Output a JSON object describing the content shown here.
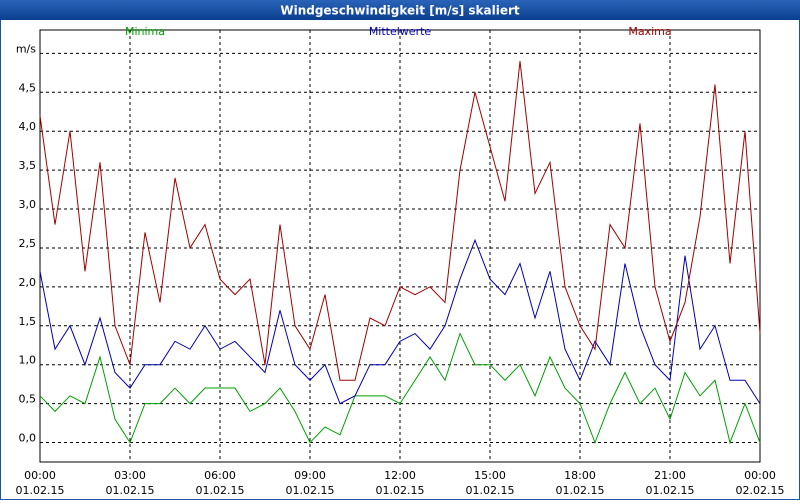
{
  "chart_data": {
    "type": "line",
    "title": "Windgeschwindigkeit [m/s] skaliert",
    "x": [
      0,
      0.5,
      1,
      1.5,
      2,
      2.5,
      3,
      3.5,
      4,
      4.5,
      5,
      5.5,
      6,
      6.5,
      7,
      7.5,
      8,
      8.5,
      9,
      9.5,
      10,
      10.5,
      11,
      11.5,
      12,
      12.5,
      13,
      13.5,
      14,
      14.5,
      15,
      15.5,
      16,
      16.5,
      17,
      17.5,
      18,
      18.5,
      19,
      19.5,
      20,
      20.5,
      21,
      21.5,
      22,
      22.5,
      23,
      23.5,
      24
    ],
    "series": [
      {
        "name": "Minima",
        "color": "#00a000",
        "values": [
          0.6,
          0.4,
          0.6,
          0.5,
          1.1,
          0.3,
          0.0,
          0.5,
          0.5,
          0.7,
          0.5,
          0.7,
          0.7,
          0.7,
          0.4,
          0.5,
          0.7,
          0.4,
          0.0,
          0.2,
          0.1,
          0.6,
          0.6,
          0.6,
          0.5,
          0.8,
          1.1,
          0.8,
          1.4,
          1.0,
          1.0,
          0.8,
          1.0,
          0.6,
          1.1,
          0.7,
          0.5,
          0.0,
          0.5,
          0.9,
          0.5,
          0.7,
          0.3,
          0.9,
          0.6,
          0.8,
          0.0,
          0.5,
          0.0
        ]
      },
      {
        "name": "Mittelwerte",
        "color": "#0000b0",
        "values": [
          2.2,
          1.2,
          1.5,
          1.0,
          1.6,
          0.9,
          0.7,
          1.0,
          1.0,
          1.3,
          1.2,
          1.5,
          1.2,
          1.3,
          1.1,
          0.9,
          1.7,
          1.0,
          0.8,
          1.0,
          0.5,
          0.6,
          1.0,
          1.0,
          1.3,
          1.4,
          1.2,
          1.5,
          2.1,
          2.6,
          2.1,
          1.9,
          2.3,
          1.6,
          2.2,
          1.2,
          0.8,
          1.3,
          1.0,
          2.3,
          1.5,
          1.0,
          0.8,
          2.4,
          1.2,
          1.5,
          0.8,
          0.8,
          0.5
        ]
      },
      {
        "name": "Maxima",
        "color": "#a00000",
        "values": [
          4.2,
          2.8,
          4.0,
          2.2,
          3.6,
          1.5,
          1.0,
          2.7,
          1.8,
          3.4,
          2.5,
          2.8,
          2.1,
          1.9,
          2.1,
          1.0,
          2.8,
          1.5,
          1.2,
          1.9,
          0.8,
          0.8,
          1.6,
          1.5,
          2.0,
          1.9,
          2.0,
          1.8,
          3.5,
          4.5,
          3.8,
          3.1,
          4.9,
          3.2,
          3.6,
          2.0,
          1.5,
          1.2,
          2.8,
          2.5,
          4.1,
          2.0,
          1.3,
          1.8,
          2.9,
          4.6,
          2.3,
          4.0,
          1.4
        ]
      }
    ],
    "xlim": [
      0,
      24
    ],
    "xticks": [
      {
        "value": 0,
        "label": "00:00"
      },
      {
        "value": 3,
        "label": "03:00"
      },
      {
        "value": 6,
        "label": "06:00"
      },
      {
        "value": 9,
        "label": "09:00"
      },
      {
        "value": 12,
        "label": "12:00"
      },
      {
        "value": 15,
        "label": "15:00"
      },
      {
        "value": 18,
        "label": "18:00"
      },
      {
        "value": 21,
        "label": "21:00"
      },
      {
        "value": 24,
        "label": "00:00"
      }
    ],
    "xtick_dates": [
      "01.02.15",
      "01.02.15",
      "01.02.15",
      "01.02.15",
      "01.02.15",
      "01.02.15",
      "01.02.15",
      "01.02.15",
      "02.02.15"
    ],
    "ylim": [
      -0.25,
      5.3
    ],
    "yticks": [
      {
        "value": 0,
        "label": "0,0"
      },
      {
        "value": 0.5,
        "label": "0,5"
      },
      {
        "value": 1,
        "label": "1,0"
      },
      {
        "value": 1.5,
        "label": "1,5"
      },
      {
        "value": 2,
        "label": "2,0"
      },
      {
        "value": 2.5,
        "label": "2,5"
      },
      {
        "value": 3,
        "label": "3,0"
      },
      {
        "value": 3.5,
        "label": "3,5"
      },
      {
        "value": 4,
        "label": "4,0"
      },
      {
        "value": 4.5,
        "label": "4,5"
      },
      {
        "value": 5,
        "label": "m/s"
      }
    ],
    "grid": true,
    "legend": "top"
  }
}
